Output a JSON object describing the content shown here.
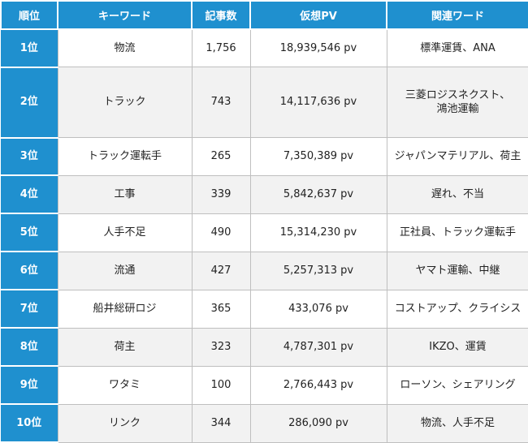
{
  "headers": [
    "順位",
    "キーワード",
    "記事数",
    "仮想PV",
    "関連ワード"
  ],
  "rows": [
    {
      "rank": "1位",
      "keyword": "物流",
      "articles": "1,756",
      "pv": "18,939,546 pv",
      "related": "標準運賃、ANA"
    },
    {
      "rank": "2位",
      "keyword": "トラック",
      "articles": "743",
      "pv": "14,117,636 pv",
      "related": "三菱ロジスネクスト、\n鴻池運輸"
    },
    {
      "rank": "3位",
      "keyword": "トラック運転手",
      "articles": "265",
      "pv": "7,350,389 pv",
      "related": "ジャパンマテリアル、荷主"
    },
    {
      "rank": "4位",
      "keyword": "工事",
      "articles": "339",
      "pv": "5,842,637 pv",
      "related": "遅れ、不当"
    },
    {
      "rank": "5位",
      "keyword": "人手不足",
      "articles": "490",
      "pv": "15,314,230 pv",
      "related": "正社員、トラック運転手"
    },
    {
      "rank": "6位",
      "keyword": "流通",
      "articles": "427",
      "pv": "5,257,313 pv",
      "related": "ヤマト運輸、中継"
    },
    {
      "rank": "7位",
      "keyword": "船井総研ロジ",
      "articles": "365",
      "pv": "433,076 pv",
      "related": "コストアップ、クライシス"
    },
    {
      "rank": "8位",
      "keyword": "荷主",
      "articles": "323",
      "pv": "4,787,301 pv",
      "related": "IKZO、運賃"
    },
    {
      "rank": "9位",
      "keyword": "ワタミ",
      "articles": "100",
      "pv": "2,766,443 pv",
      "related": "ローソン、シェアリング"
    },
    {
      "rank": "10位",
      "keyword": "リンク",
      "articles": "344",
      "pv": "286,090 pv",
      "related": "物流、人手不足"
    }
  ],
  "colors": {
    "header_bg": "#1f90cf",
    "header_text": "#ffffff",
    "stripe": "#f2f2f2"
  }
}
